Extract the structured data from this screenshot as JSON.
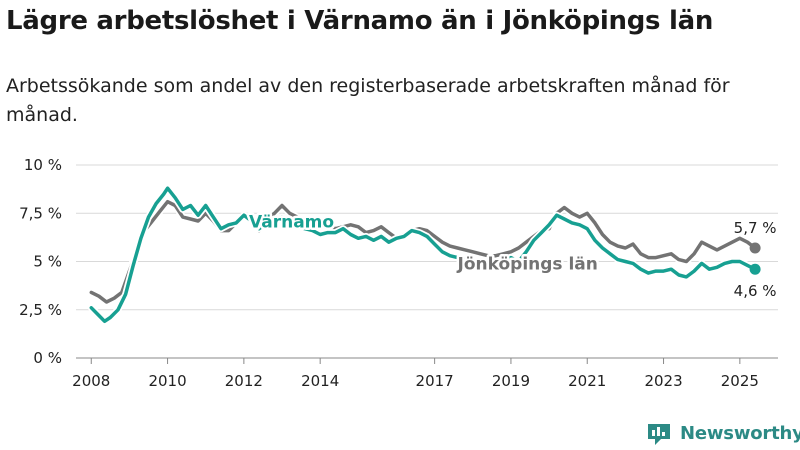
{
  "title": "Lägre arbetslöshet i Värnamo än i Jönköpings län",
  "subtitle": "Arbetssökande som andel av den registerbaserade arbetskraften månad för månad.",
  "brand": {
    "name": "Newsworthy",
    "logo_icon": "newsworthy-logo-icon"
  },
  "colors": {
    "varnamo": "#17a092",
    "jonkoping": "#737373",
    "grid": "#d9d9d9",
    "text": "#1a1a1a"
  },
  "chart_data": {
    "type": "line",
    "ylim": [
      0,
      10
    ],
    "xlim": [
      2007.6,
      2026.0
    ],
    "yticks": [
      {
        "value": 0,
        "label": "0 %"
      },
      {
        "value": 2.5,
        "label": "2,5 %"
      },
      {
        "value": 5,
        "label": "5 %"
      },
      {
        "value": 7.5,
        "label": "7,5 %"
      },
      {
        "value": 10,
        "label": "10 %"
      }
    ],
    "xticks": [
      {
        "value": 2008,
        "label": "2008"
      },
      {
        "value": 2010,
        "label": "2010"
      },
      {
        "value": 2012,
        "label": "2012"
      },
      {
        "value": 2014,
        "label": "2014"
      },
      {
        "value": 2017,
        "label": "2017"
      },
      {
        "value": 2019,
        "label": "2019"
      },
      {
        "value": 2021,
        "label": "2021"
      },
      {
        "value": 2023,
        "label": "2023"
      },
      {
        "value": 2025,
        "label": "2025"
      }
    ],
    "grid": true,
    "series": [
      {
        "name": "Jönköpings län",
        "color": "#737373",
        "end_label": "5,7 %",
        "points": [
          [
            2008.0,
            3.4
          ],
          [
            2008.2,
            3.2
          ],
          [
            2008.4,
            2.9
          ],
          [
            2008.6,
            3.1
          ],
          [
            2008.8,
            3.4
          ],
          [
            2009.0,
            4.5
          ],
          [
            2009.2,
            5.6
          ],
          [
            2009.4,
            6.6
          ],
          [
            2009.6,
            7.1
          ],
          [
            2009.8,
            7.6
          ],
          [
            2010.0,
            8.1
          ],
          [
            2010.2,
            7.9
          ],
          [
            2010.4,
            7.3
          ],
          [
            2010.6,
            7.2
          ],
          [
            2010.8,
            7.1
          ],
          [
            2011.0,
            7.5
          ],
          [
            2011.2,
            7.1
          ],
          [
            2011.4,
            6.6
          ],
          [
            2011.6,
            6.6
          ],
          [
            2011.8,
            7.0
          ],
          [
            2012.0,
            7.3
          ],
          [
            2012.2,
            7.1
          ],
          [
            2012.4,
            6.6
          ],
          [
            2012.6,
            7.2
          ],
          [
            2012.8,
            7.5
          ],
          [
            2013.0,
            7.9
          ],
          [
            2013.2,
            7.5
          ],
          [
            2013.4,
            7.3
          ],
          [
            2013.6,
            7.0
          ],
          [
            2013.8,
            7.1
          ],
          [
            2014.0,
            7.0
          ],
          [
            2014.2,
            6.9
          ],
          [
            2014.4,
            6.7
          ],
          [
            2014.6,
            6.8
          ],
          [
            2014.8,
            6.9
          ],
          [
            2015.0,
            6.8
          ],
          [
            2015.2,
            6.5
          ],
          [
            2015.4,
            6.6
          ],
          [
            2015.6,
            6.8
          ],
          [
            2015.8,
            6.5
          ],
          [
            2016.0,
            6.2
          ],
          [
            2016.2,
            6.4
          ],
          [
            2016.4,
            6.6
          ],
          [
            2016.6,
            6.7
          ],
          [
            2016.8,
            6.6
          ],
          [
            2017.0,
            6.3
          ],
          [
            2017.2,
            6.0
          ],
          [
            2017.4,
            5.8
          ],
          [
            2017.6,
            5.7
          ],
          [
            2017.8,
            5.6
          ],
          [
            2018.0,
            5.5
          ],
          [
            2018.2,
            5.4
          ],
          [
            2018.4,
            5.3
          ],
          [
            2018.6,
            5.3
          ],
          [
            2018.8,
            5.4
          ],
          [
            2019.0,
            5.5
          ],
          [
            2019.2,
            5.7
          ],
          [
            2019.4,
            6.0
          ],
          [
            2019.6,
            6.3
          ],
          [
            2019.8,
            6.6
          ],
          [
            2020.0,
            6.7
          ],
          [
            2020.2,
            7.5
          ],
          [
            2020.4,
            7.8
          ],
          [
            2020.6,
            7.5
          ],
          [
            2020.8,
            7.3
          ],
          [
            2021.0,
            7.5
          ],
          [
            2021.2,
            7.0
          ],
          [
            2021.4,
            6.4
          ],
          [
            2021.6,
            6.0
          ],
          [
            2021.8,
            5.8
          ],
          [
            2022.0,
            5.7
          ],
          [
            2022.2,
            5.9
          ],
          [
            2022.4,
            5.4
          ],
          [
            2022.6,
            5.2
          ],
          [
            2022.8,
            5.2
          ],
          [
            2023.0,
            5.3
          ],
          [
            2023.2,
            5.4
          ],
          [
            2023.4,
            5.1
          ],
          [
            2023.6,
            5.0
          ],
          [
            2023.8,
            5.4
          ],
          [
            2024.0,
            6.0
          ],
          [
            2024.2,
            5.8
          ],
          [
            2024.4,
            5.6
          ],
          [
            2024.6,
            5.8
          ],
          [
            2024.8,
            6.0
          ],
          [
            2025.0,
            6.2
          ],
          [
            2025.2,
            6.0
          ],
          [
            2025.4,
            5.7
          ]
        ]
      },
      {
        "name": "Värnamo",
        "color": "#17a092",
        "end_label": "4,6 %",
        "points": [
          [
            2008.0,
            2.6
          ],
          [
            2008.2,
            2.2
          ],
          [
            2008.35,
            1.9
          ],
          [
            2008.5,
            2.1
          ],
          [
            2008.7,
            2.5
          ],
          [
            2008.9,
            3.3
          ],
          [
            2009.1,
            4.8
          ],
          [
            2009.3,
            6.2
          ],
          [
            2009.5,
            7.3
          ],
          [
            2009.7,
            8.0
          ],
          [
            2009.9,
            8.5
          ],
          [
            2010.0,
            8.8
          ],
          [
            2010.2,
            8.3
          ],
          [
            2010.4,
            7.7
          ],
          [
            2010.6,
            7.9
          ],
          [
            2010.8,
            7.4
          ],
          [
            2011.0,
            7.9
          ],
          [
            2011.2,
            7.3
          ],
          [
            2011.4,
            6.7
          ],
          [
            2011.6,
            6.9
          ],
          [
            2011.8,
            7.0
          ],
          [
            2012.0,
            7.4
          ],
          [
            2012.2,
            7.1
          ],
          [
            2012.4,
            6.7
          ],
          [
            2012.6,
            7.0
          ],
          [
            2012.8,
            7.2
          ],
          [
            2013.0,
            7.3
          ],
          [
            2013.2,
            7.0
          ],
          [
            2013.4,
            6.8
          ],
          [
            2013.6,
            6.7
          ],
          [
            2013.8,
            6.6
          ],
          [
            2014.0,
            6.4
          ],
          [
            2014.2,
            6.5
          ],
          [
            2014.4,
            6.5
          ],
          [
            2014.6,
            6.7
          ],
          [
            2014.8,
            6.4
          ],
          [
            2015.0,
            6.2
          ],
          [
            2015.2,
            6.3
          ],
          [
            2015.4,
            6.1
          ],
          [
            2015.6,
            6.3
          ],
          [
            2015.8,
            6.0
          ],
          [
            2016.0,
            6.2
          ],
          [
            2016.2,
            6.3
          ],
          [
            2016.4,
            6.6
          ],
          [
            2016.6,
            6.5
          ],
          [
            2016.8,
            6.3
          ],
          [
            2017.0,
            5.9
          ],
          [
            2017.2,
            5.5
          ],
          [
            2017.4,
            5.3
          ],
          [
            2017.6,
            5.2
          ],
          [
            2017.8,
            5.1
          ],
          [
            2018.0,
            5.0
          ],
          [
            2018.2,
            4.9
          ],
          [
            2018.4,
            5.0
          ],
          [
            2018.6,
            5.0
          ],
          [
            2018.8,
            5.0
          ],
          [
            2019.0,
            5.2
          ],
          [
            2019.2,
            5.0
          ],
          [
            2019.4,
            5.5
          ],
          [
            2019.6,
            6.1
          ],
          [
            2019.8,
            6.5
          ],
          [
            2020.0,
            6.9
          ],
          [
            2020.2,
            7.4
          ],
          [
            2020.4,
            7.2
          ],
          [
            2020.6,
            7.0
          ],
          [
            2020.8,
            6.9
          ],
          [
            2021.0,
            6.7
          ],
          [
            2021.2,
            6.1
          ],
          [
            2021.4,
            5.7
          ],
          [
            2021.6,
            5.4
          ],
          [
            2021.8,
            5.1
          ],
          [
            2022.0,
            5.0
          ],
          [
            2022.2,
            4.9
          ],
          [
            2022.4,
            4.6
          ],
          [
            2022.6,
            4.4
          ],
          [
            2022.8,
            4.5
          ],
          [
            2023.0,
            4.5
          ],
          [
            2023.2,
            4.6
          ],
          [
            2023.4,
            4.3
          ],
          [
            2023.6,
            4.2
          ],
          [
            2023.8,
            4.5
          ],
          [
            2024.0,
            4.9
          ],
          [
            2024.2,
            4.6
          ],
          [
            2024.4,
            4.7
          ],
          [
            2024.6,
            4.9
          ],
          [
            2024.8,
            5.0
          ],
          [
            2025.0,
            5.0
          ],
          [
            2025.2,
            4.8
          ],
          [
            2025.4,
            4.6
          ]
        ]
      }
    ]
  }
}
